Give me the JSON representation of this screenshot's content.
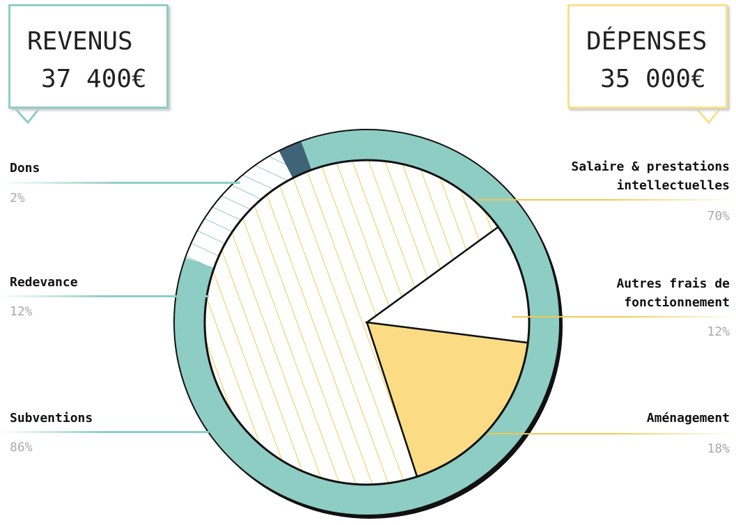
{
  "chart_data": [
    {
      "type": "donut",
      "title": "REVENUS",
      "subtitle": "37 400€",
      "categories": [
        "Dons",
        "Redevance",
        "Subventions"
      ],
      "values": [
        2,
        12,
        86
      ],
      "value_labels": [
        "2%",
        "12%",
        "86%"
      ],
      "colors": [
        "#3e6478",
        "#8ecdc4",
        "#8ecdc4"
      ],
      "hatched": [
        false,
        true,
        false
      ]
    },
    {
      "type": "pie",
      "title": "DÉPENSES",
      "subtitle": "35 000€",
      "categories": [
        "Salaire & prestations intellectuelles",
        "Autres frais de fonctionnement",
        "Aménagement"
      ],
      "values": [
        70,
        12,
        18
      ],
      "value_labels": [
        "70%",
        "12%",
        "18%"
      ],
      "colors": [
        "#f2c94c",
        "#ffffff",
        "#fbdc85"
      ],
      "hatched": [
        true,
        false,
        false
      ]
    }
  ]
}
